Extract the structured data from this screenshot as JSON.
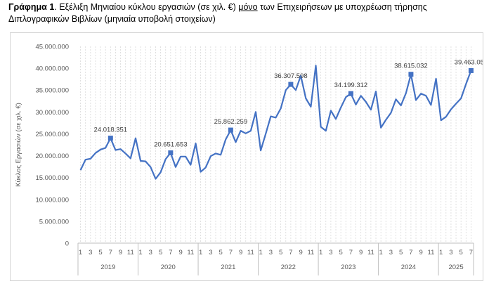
{
  "caption": {
    "label": "Γράφημα 1",
    "part1": ". Εξέλιξη Μηνιαίου κύκλου εργασιών (σε χιλ. €) ",
    "emphasis": "μόνο",
    "part2": " των Επιχειρήσεων με υποχρέωση τήρησης Διπλογραφικών Βιβλίων (μηνιαία υποβολή στοιχείων)"
  },
  "colors": {
    "line": "#4472C4",
    "grid": "#d9d9d9",
    "text": "#595959"
  },
  "chart_data": {
    "type": "line",
    "title": "",
    "ylabel": "Κύκλος Εργασιών (σε χιλ. €)",
    "xlabel": "",
    "ylim": [
      0,
      45000000
    ],
    "yticks": [
      "0",
      "5.000.000",
      "10.000.000",
      "15.000.000",
      "20.000.000",
      "25.000.000",
      "30.000.000",
      "35.000.000",
      "40.000.000",
      "45.000.000"
    ],
    "grid": "vertical dashed per month",
    "legend": "none",
    "years": [
      "2019",
      "2020",
      "2021",
      "2022",
      "2023",
      "2024",
      "2025"
    ],
    "month_tick_labels": [
      "1",
      "3",
      "5",
      "7",
      "9",
      "11"
    ],
    "series": [
      {
        "values": [
          16700000,
          19100000,
          19300000,
          20600000,
          21400000,
          21800000,
          24018351,
          21300000,
          21500000,
          20500000,
          19400000,
          24000000,
          18800000,
          18700000,
          17400000,
          14700000,
          16200000,
          19200000,
          20651653,
          17400000,
          19800000,
          19800000,
          17900000,
          22800000,
          16300000,
          17300000,
          19900000,
          20500000,
          20200000,
          23700000,
          25862259,
          23100000,
          25700000,
          25100000,
          25700000,
          30000000,
          21200000,
          25000000,
          29000000,
          28700000,
          30800000,
          35000000,
          36307598,
          35000000,
          38300000,
          33100000,
          31200000,
          40600000,
          26600000,
          25700000,
          30300000,
          28400000,
          31000000,
          33400000,
          34199312,
          31700000,
          33700000,
          32300000,
          30500000,
          34700000,
          26400000,
          28200000,
          29800000,
          32900000,
          31500000,
          34300000,
          38615032,
          32700000,
          34200000,
          33700000,
          31600000,
          37600000,
          28100000,
          28900000,
          30600000,
          31900000,
          33100000,
          36400000,
          39463054
        ]
      }
    ],
    "annotations": [
      {
        "index": 6,
        "label": "24.018.351"
      },
      {
        "index": 18,
        "label": "20.651.653"
      },
      {
        "index": 30,
        "label": "25.862.259"
      },
      {
        "index": 42,
        "label": "36.307.598"
      },
      {
        "index": 54,
        "label": "34.199.312"
      },
      {
        "index": 66,
        "label": "38.615.032"
      },
      {
        "index": 78,
        "label": "39.463.054"
      }
    ]
  }
}
